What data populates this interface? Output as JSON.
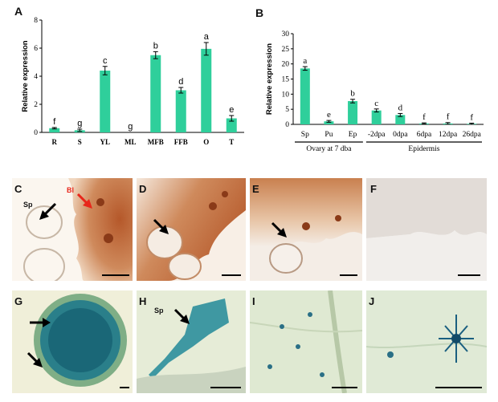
{
  "panel_letters": {
    "A": "A",
    "B": "B",
    "C": "C",
    "D": "D",
    "E": "E",
    "F": "F",
    "G": "G",
    "H": "H",
    "I": "I",
    "J": "J"
  },
  "chart_data": [
    {
      "type": "bar",
      "panel": "A",
      "ylabel": "Relative expression",
      "categories": [
        "R",
        "S",
        "YL",
        "ML",
        "MFB",
        "FFB",
        "O",
        "T"
      ],
      "values": [
        0.3,
        0.15,
        4.4,
        0.0,
        5.5,
        3.0,
        5.95,
        1.0
      ],
      "errors": [
        0.05,
        0.08,
        0.3,
        0.0,
        0.25,
        0.2,
        0.45,
        0.2
      ],
      "significance": [
        "f",
        "g",
        "c",
        "g",
        "b",
        "d",
        "a",
        "e"
      ],
      "yticks": [
        0,
        2,
        4,
        6,
        8
      ],
      "ylim": [
        0,
        8
      ],
      "color": "#2fcf9b"
    },
    {
      "type": "bar",
      "panel": "B",
      "ylabel": "Relative expression",
      "categories": [
        "Sp",
        "Pu",
        "Ep",
        "-2dpa",
        "0dpa",
        "6dpa",
        "12dpa",
        "26dpa"
      ],
      "values": [
        18.5,
        1.0,
        7.7,
        4.6,
        3.1,
        0.3,
        0.3,
        0.2
      ],
      "errors": [
        0.6,
        0.3,
        0.6,
        0.5,
        0.5,
        0.2,
        0.3,
        0.2
      ],
      "significance": [
        "a",
        "e",
        "b",
        "c",
        "d",
        "f",
        "f",
        "f"
      ],
      "yticks": [
        0,
        5,
        10,
        15,
        20,
        25,
        30
      ],
      "ylim": [
        0,
        30
      ],
      "color": "#2fcf9b",
      "groups": [
        {
          "label": "Ovary at 7 dba",
          "from": 0,
          "to": 2
        },
        {
          "label": "Epidermis",
          "from": 3,
          "to": 7
        }
      ]
    }
  ],
  "micrographs": {
    "C": {
      "labels": [
        "Sp",
        "Bl"
      ]
    },
    "D": {
      "labels": []
    },
    "E": {
      "labels": []
    },
    "F": {
      "labels": []
    },
    "G": {
      "labels": []
    },
    "H": {
      "labels": [
        "Sp"
      ]
    },
    "I": {
      "labels": []
    },
    "J": {
      "labels": []
    }
  },
  "colors": {
    "bar": "#2fcf9b",
    "stain_brown": "#b5582a",
    "gus_blue": "#1f8fa0",
    "arrow_red": "#e8261a"
  }
}
